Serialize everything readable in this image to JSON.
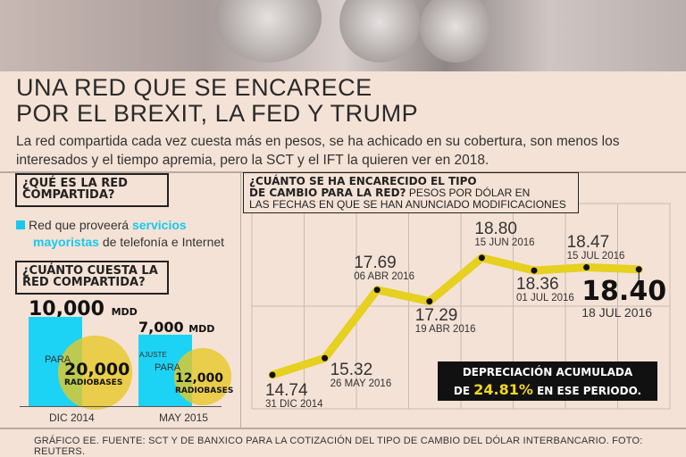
{
  "header": {
    "title_line1": "UNA RED QUE SE ENCARECE",
    "title_line2": "POR EL BREXIT, LA FED Y TRUMP",
    "subtitle": "La red compartida cada vez cuesta más en pesos, se ha achicado en su cobertura, son menos los interesados y el tiempo apremia, pero la SCT y el IFT la quieren ver en 2018."
  },
  "left": {
    "q1_line1": "¿QUÉ ES LA RED",
    "q1_line2": "COMPARTIDA?",
    "desc_a": "Red que proveerá ",
    "desc_hl1": "servicios",
    "desc_hl2": "mayoristas",
    "desc_b": " de telefonía e Internet",
    "q2_line1": "¿CUÁNTO CUESTA LA",
    "q2_line2": "RED COMPARTIDA?",
    "bars": [
      {
        "amount": "10,000",
        "unit": "MDD",
        "note": "",
        "para": "PARA",
        "radiobases": "20,000",
        "rb_label": "RADIOBASES",
        "date": "DIC 2014",
        "value": 10000
      },
      {
        "amount": "7,000",
        "unit": "MDD",
        "note": "AJUSTE",
        "para": "PARA",
        "radiobases": "12,000",
        "rb_label": "RADIOBASES",
        "date": "MAY 2015",
        "value": 7000
      }
    ],
    "colors": {
      "bar": "#1dd3f5",
      "circle": "#e6c828"
    }
  },
  "chart_data": {
    "type": "line",
    "title": "¿CUÁNTO SE HA ENCARECIDO EL TIPO DE CAMBIO PARA LA RED?",
    "title_line1": "¿CUÁNTO SE HA ENCARECIDO EL TIPO",
    "title_line2": "DE CAMBIO PARA LA RED?",
    "subtitle_a": " PESOS POR DÓLAR EN",
    "subtitle_b": "LAS FECHAS EN QUE SE HAN ANUNCIADO MODIFICACIONES",
    "ylabel": "Pesos por dólar",
    "points": [
      {
        "date": "31 DIC 2014",
        "value": 14.74,
        "label": "14.74"
      },
      {
        "date": "26 MAY 2016",
        "value": 15.32,
        "label": "15.32"
      },
      {
        "date": "06 ABR 2016",
        "value": 17.69,
        "label": "17.69"
      },
      {
        "date": "19 ABR 2016",
        "value": 17.29,
        "label": "17.29"
      },
      {
        "date": "15 JUN 2016",
        "value": 18.8,
        "label": "18.80"
      },
      {
        "date": "01 JUL 2016",
        "value": 18.36,
        "label": "18.36"
      },
      {
        "date": "15 JUL 2016",
        "value": 18.47,
        "label": "18.47"
      },
      {
        "date": "18 JUL 2016",
        "value": 18.4,
        "label": "18.40"
      }
    ],
    "line_color": "#e6d020",
    "grid": true,
    "callout": {
      "line1": "DEPRECIACIÓN ACUMULADA",
      "pre": "DE ",
      "pct": "24.81%",
      "post": " EN ESE PERIODO."
    }
  },
  "footer": "GRÁFICO EE. FUENTE: SCT Y DE BANXICO PARA LA COTIZACIÓN DEL TIPO DE CAMBIO DEL DÓLAR INTERBANCARIO. FOTO: REUTERS."
}
